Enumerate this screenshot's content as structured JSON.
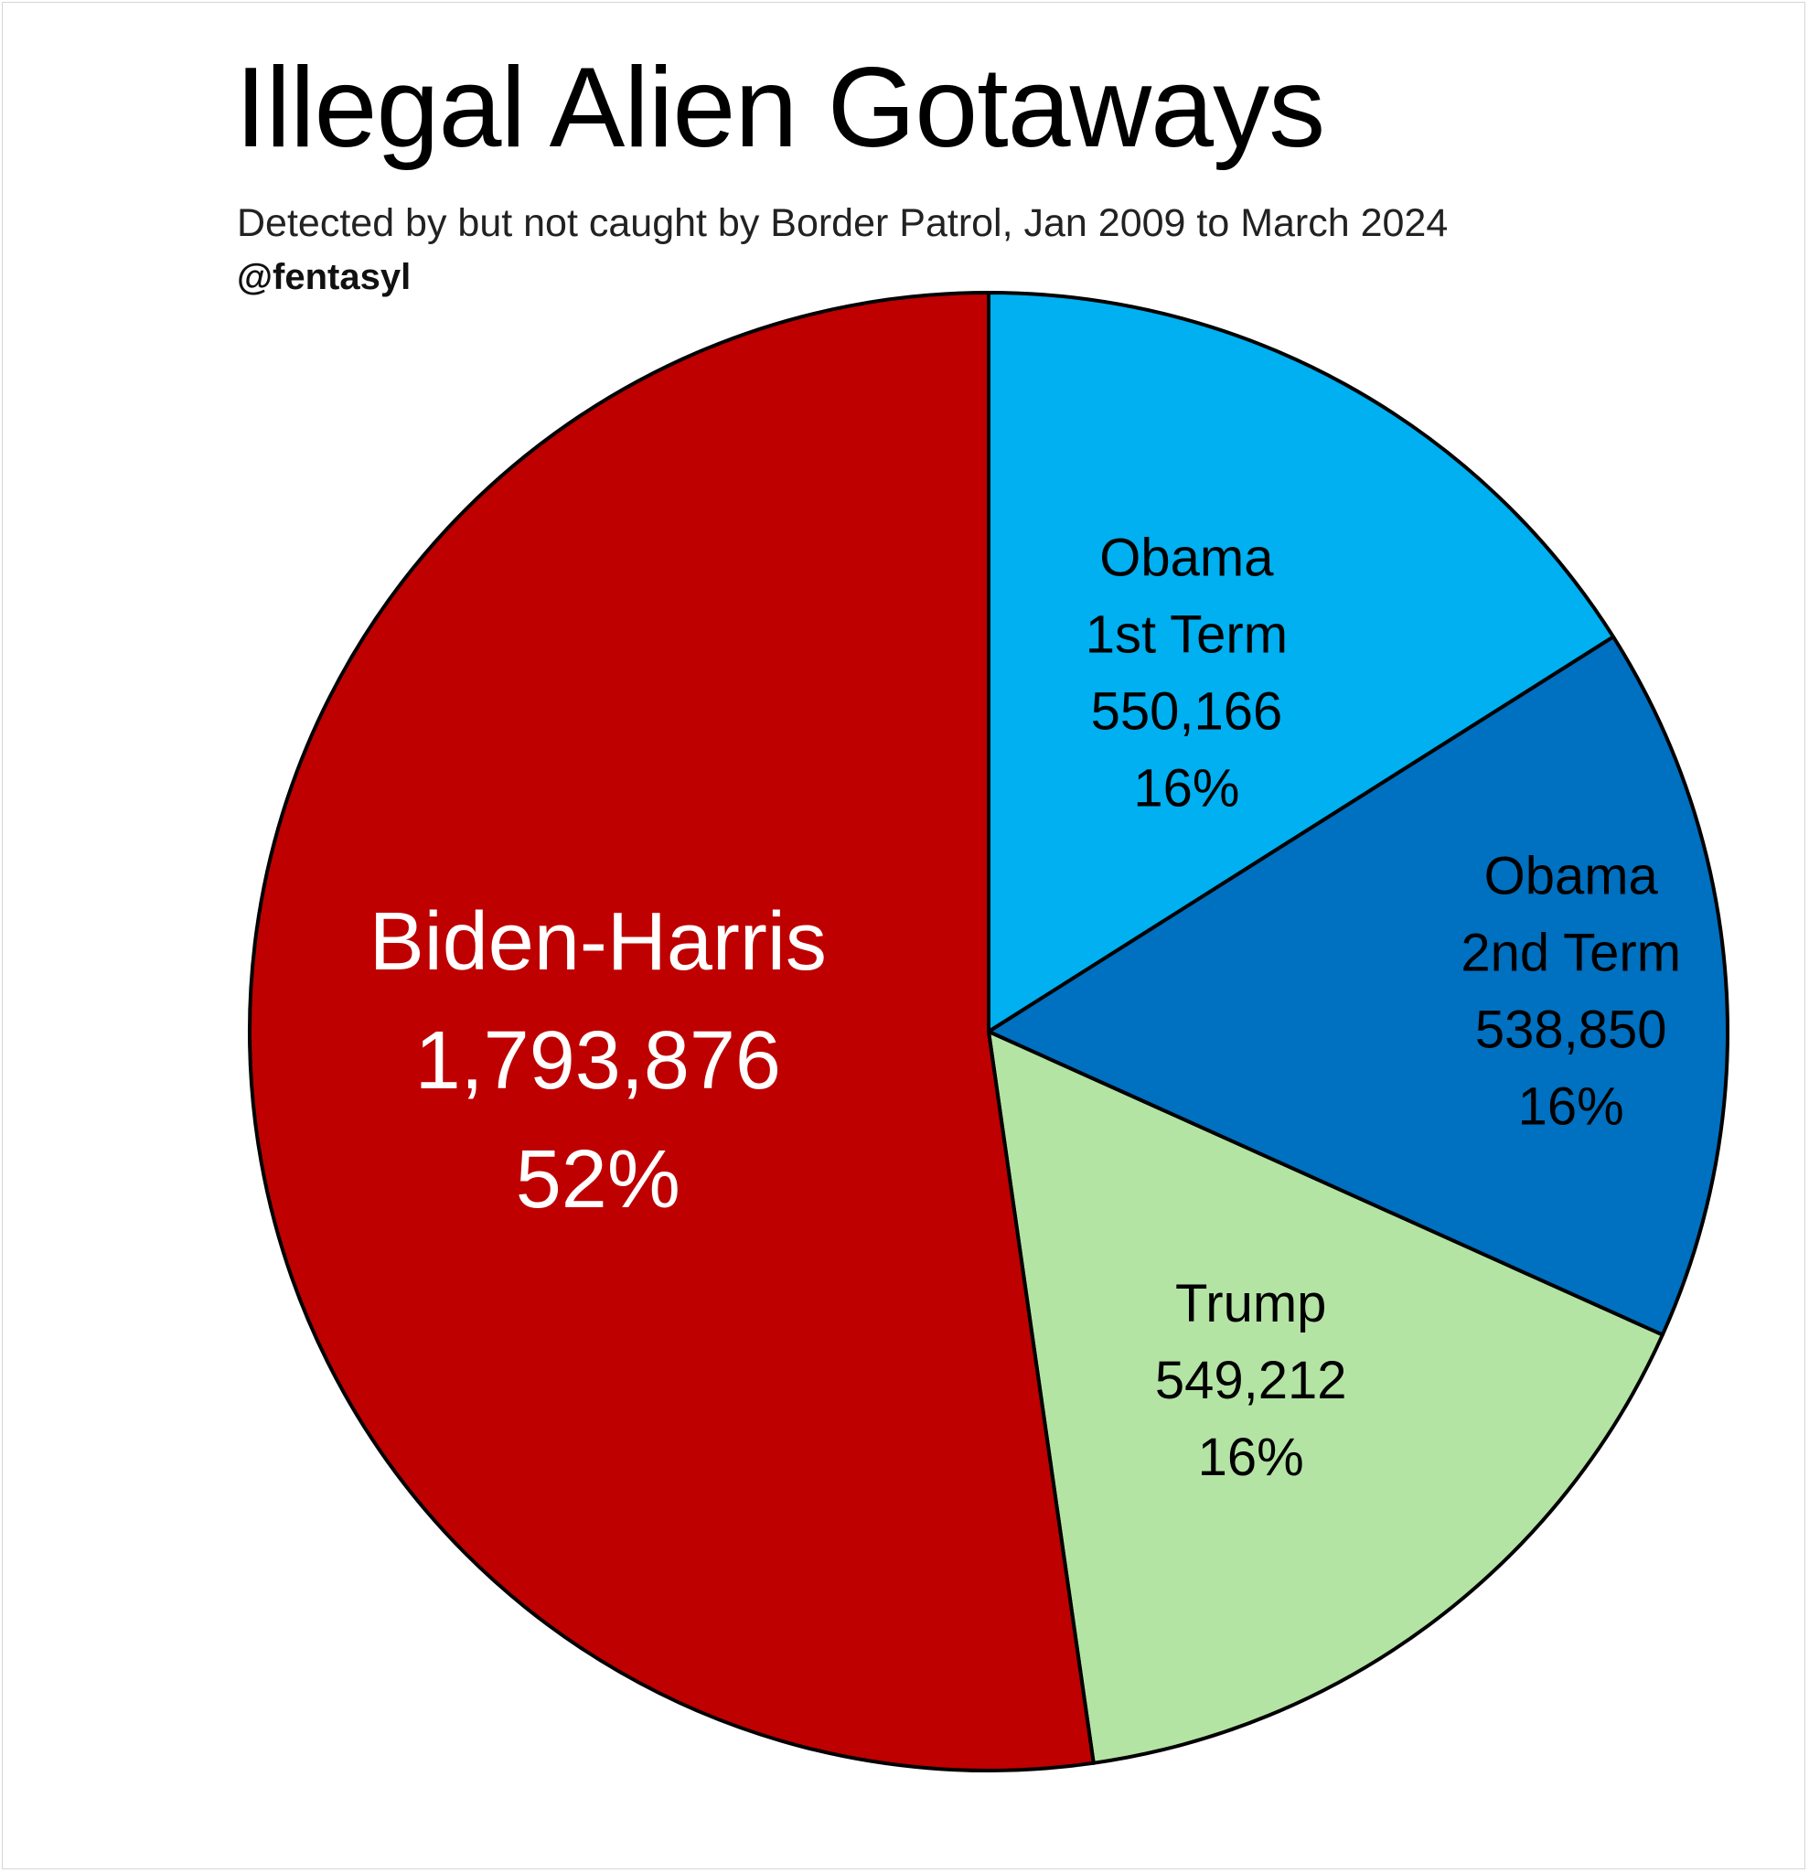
{
  "header": {
    "title": "Illegal Alien Gotaways",
    "subtitle": "Detected by but not caught by Border Patrol, Jan 2009 to March 2024",
    "handle": "@fentasyl"
  },
  "chart_data": {
    "type": "pie",
    "title": "Illegal Alien Gotaways",
    "subtitle": "Detected by but not caught by Border Patrol, Jan 2009 to March 2024",
    "start": "12 o'clock, clockwise",
    "slices": [
      {
        "label_lines": [
          "Obama",
          "1st Term"
        ],
        "value": 550166,
        "value_text": "550,166",
        "percent_text": "16%",
        "color": "#00B0F0",
        "text_color": "#000000"
      },
      {
        "label_lines": [
          "Obama",
          "2nd Term"
        ],
        "value": 538850,
        "value_text": "538,850",
        "percent_text": "16%",
        "color": "#0070C0",
        "text_color": "#000000"
      },
      {
        "label_lines": [
          "Trump"
        ],
        "value": 549212,
        "value_text": "549,212",
        "percent_text": "16%",
        "color": "#B4E4A4",
        "text_color": "#000000"
      },
      {
        "label_lines": [
          "Biden-Harris"
        ],
        "value": 1793876,
        "value_text": "1,793,876",
        "percent_text": "52%",
        "color": "#BE0000",
        "text_color": "#ffffff"
      }
    ]
  }
}
